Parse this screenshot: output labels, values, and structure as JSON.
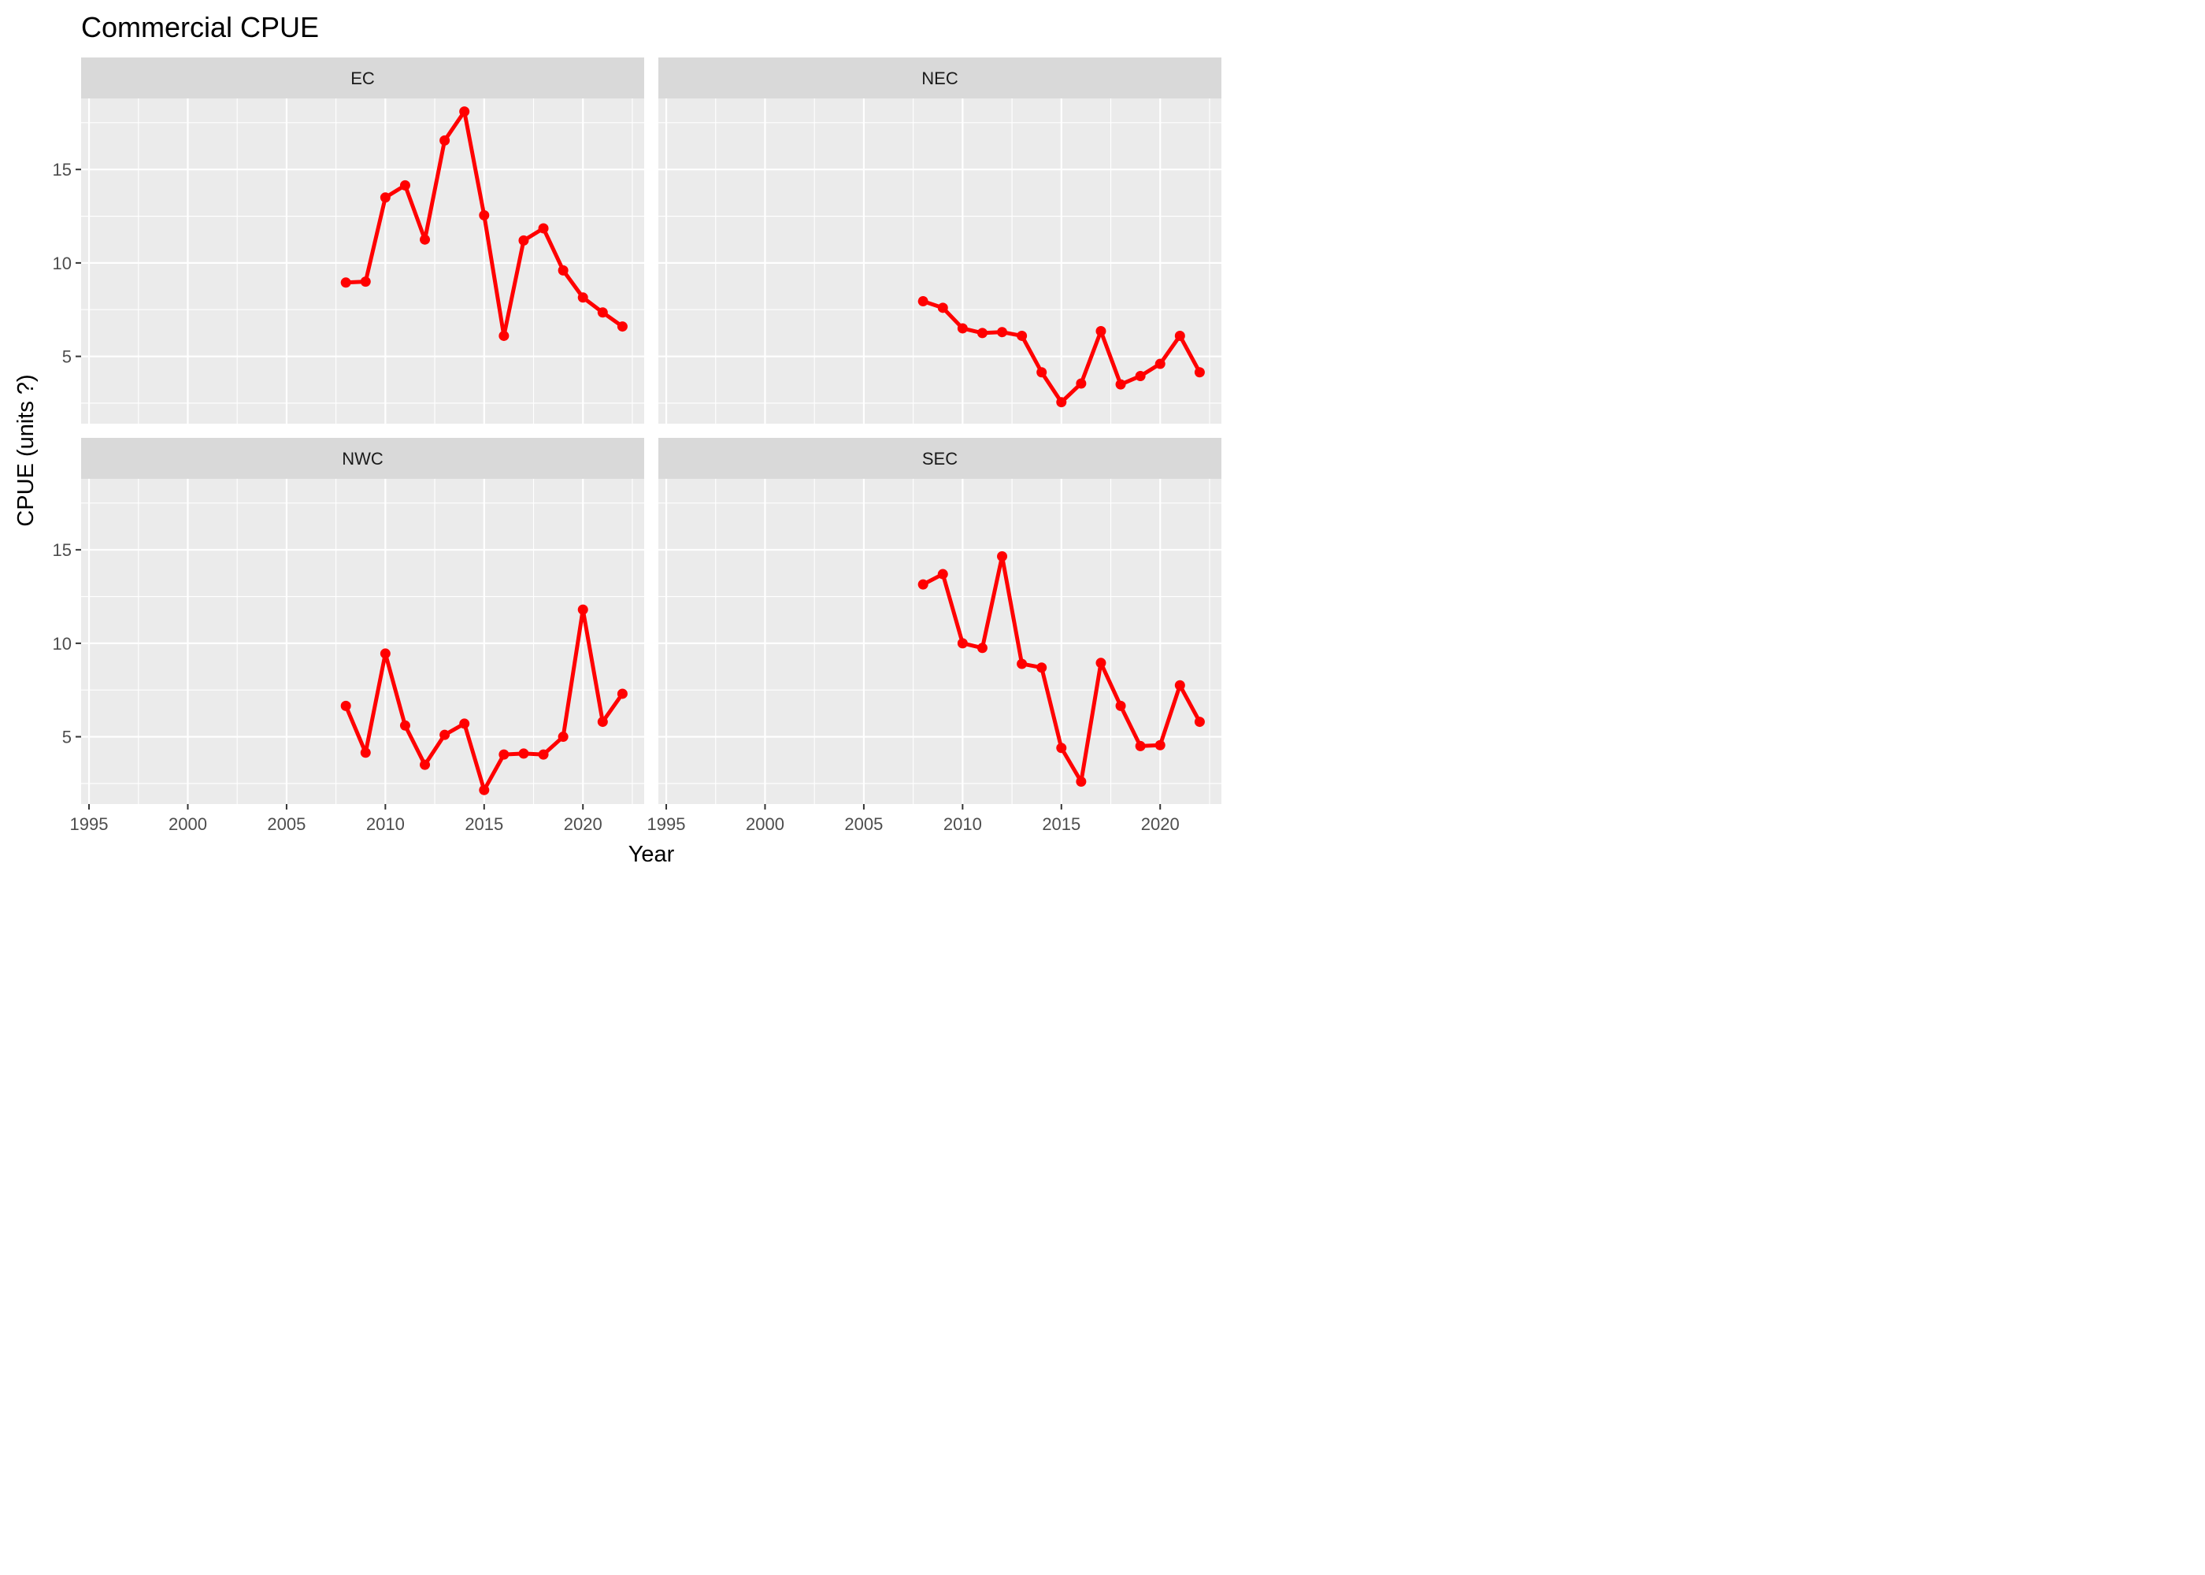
{
  "chart_data": {
    "type": "line",
    "title": "Commercial CPUE",
    "xlabel": "Year",
    "ylabel": "CPUE (units ?)",
    "xlim": [
      1994.6,
      2023.1
    ],
    "ylim": [
      1.4,
      18.8
    ],
    "x_ticks": [
      1995,
      2000,
      2005,
      2010,
      2015,
      2020
    ],
    "y_ticks": [
      5,
      10,
      15
    ],
    "grid": true,
    "legend": "none",
    "colors": {
      "line": "#ff0000",
      "panel_bg": "#ebebeb",
      "strip_bg": "#d9d9d9",
      "grid": "#ffffff"
    },
    "facets": [
      {
        "label": "EC",
        "x": [
          2008,
          2009,
          2010,
          2011,
          2012,
          2013,
          2014,
          2015,
          2016,
          2017,
          2018,
          2019,
          2020,
          2021,
          2022
        ],
        "y": [
          8.95,
          9.0,
          13.5,
          14.15,
          11.25,
          16.55,
          18.1,
          12.55,
          6.1,
          11.2,
          11.85,
          9.6,
          8.15,
          7.35,
          6.6
        ]
      },
      {
        "label": "NEC",
        "x": [
          2008,
          2009,
          2010,
          2011,
          2012,
          2013,
          2014,
          2015,
          2016,
          2017,
          2018,
          2019,
          2020,
          2021,
          2022
        ],
        "y": [
          7.95,
          7.6,
          6.5,
          6.25,
          6.3,
          6.1,
          4.15,
          2.55,
          3.55,
          6.35,
          3.5,
          3.95,
          4.6,
          6.1,
          4.15
        ]
      },
      {
        "label": "NWC",
        "x": [
          2008,
          2009,
          2010,
          2011,
          2012,
          2013,
          2014,
          2015,
          2016,
          2017,
          2018,
          2019,
          2020,
          2021,
          2022
        ],
        "y": [
          6.65,
          4.15,
          9.45,
          5.6,
          3.5,
          5.1,
          5.7,
          2.15,
          4.05,
          4.1,
          4.05,
          5.0,
          11.8,
          5.8,
          7.3
        ]
      },
      {
        "label": "SEC",
        "x": [
          2008,
          2009,
          2010,
          2011,
          2012,
          2013,
          2014,
          2015,
          2016,
          2017,
          2018,
          2019,
          2020,
          2021,
          2022
        ],
        "y": [
          13.15,
          13.7,
          10.0,
          9.75,
          14.65,
          8.9,
          8.7,
          4.4,
          2.6,
          8.95,
          6.65,
          4.5,
          4.55,
          7.75,
          5.8
        ]
      }
    ]
  }
}
